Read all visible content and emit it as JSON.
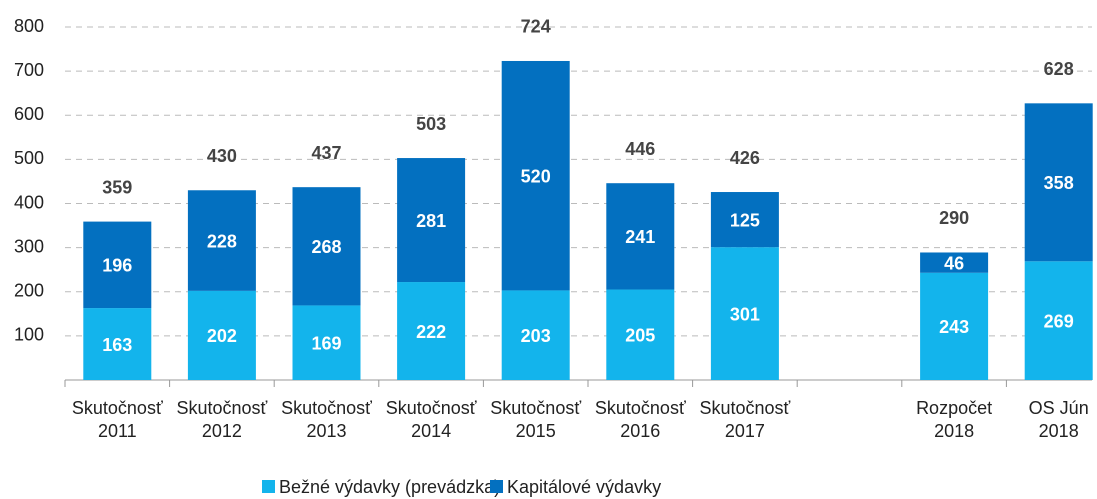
{
  "chart_data": {
    "type": "stacked_bar",
    "categories": [
      "Skutočnosť\n2011",
      "Skutočnosť\n2012",
      "Skutočnosť\n2013",
      "Skutočnosť\n2014",
      "Skutočnosť\n2015",
      "Skutočnosť\n2016",
      "Skutočnosť\n2017",
      null,
      "Rozpočet\n2018",
      "OS Jún\n2018"
    ],
    "series": [
      {
        "name": "Bežné výdavky (prevádzka)",
        "color": "#13b4ec",
        "values": [
          163,
          202,
          169,
          222,
          203,
          205,
          301,
          null,
          243,
          269
        ]
      },
      {
        "name": "Kapitálové výdavky",
        "color": "#0370c0",
        "values": [
          196,
          228,
          268,
          281,
          520,
          241,
          125,
          null,
          46,
          358
        ]
      }
    ],
    "totals": [
      359,
      430,
      437,
      503,
      724,
      446,
      426,
      null,
      290,
      628
    ],
    "ylim": [
      0,
      800
    ],
    "yticks": [
      100,
      200,
      300,
      400,
      500,
      600,
      700,
      800
    ],
    "grid": true,
    "legend": "bottom"
  }
}
